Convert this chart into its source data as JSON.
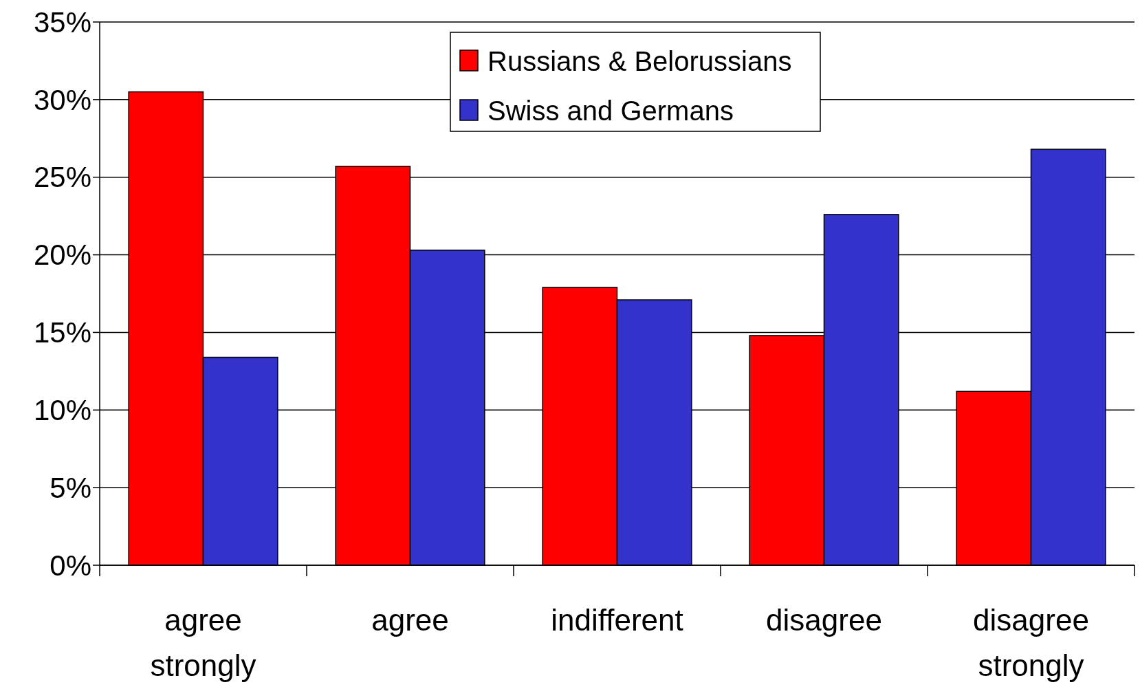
{
  "chart_data": {
    "type": "bar",
    "categories": [
      "agree strongly",
      "agree",
      "indifferent",
      "disagree",
      "disagree strongly"
    ],
    "series": [
      {
        "name": "Russians & Belorussians",
        "color": "#ff0000",
        "values": [
          30.5,
          25.7,
          17.9,
          14.8,
          11.2
        ]
      },
      {
        "name": "Swiss and Germans",
        "color": "#3333cc",
        "values": [
          13.4,
          20.3,
          17.1,
          22.6,
          26.8
        ]
      }
    ],
    "ylim": [
      0,
      35
    ],
    "yticks": [
      {
        "value": 0,
        "label": "0%"
      },
      {
        "value": 5,
        "label": "5%"
      },
      {
        "value": 10,
        "label": "10%"
      },
      {
        "value": 15,
        "label": "15%"
      },
      {
        "value": 20,
        "label": "20%"
      },
      {
        "value": 25,
        "label": "25%"
      },
      {
        "value": 30,
        "label": "30%"
      },
      {
        "value": 35,
        "label": "35%"
      }
    ],
    "grid": "y",
    "legend": "top"
  }
}
